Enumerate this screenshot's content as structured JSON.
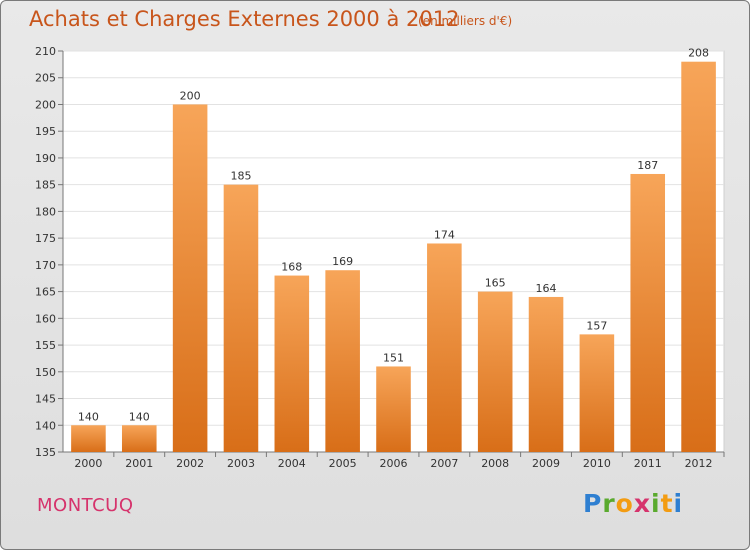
{
  "header": {
    "title": "Achats et Charges Externes 2000 à 2012",
    "subtitle": "(en milliers d'€)"
  },
  "footer": {
    "commune": "MONTCUQ",
    "brand_letters": [
      "P",
      "r",
      "o",
      "x",
      "i",
      "t",
      "i"
    ]
  },
  "colors": {
    "bar_light": "#f7a559",
    "bar_dark": "#d86e18",
    "title": "#c8551b",
    "commune": "#d6336c"
  },
  "chart_data": {
    "type": "bar",
    "categories": [
      "2000",
      "2001",
      "2002",
      "2003",
      "2004",
      "2005",
      "2006",
      "2007",
      "2008",
      "2009",
      "2010",
      "2011",
      "2012"
    ],
    "values": [
      140,
      140,
      200,
      185,
      168,
      169,
      151,
      174,
      165,
      164,
      157,
      187,
      208
    ],
    "ylim": [
      135,
      210
    ],
    "yticks": [
      135,
      140,
      145,
      150,
      155,
      160,
      165,
      170,
      175,
      180,
      185,
      190,
      195,
      200,
      205,
      210
    ],
    "grid": true,
    "data_labels": true
  }
}
